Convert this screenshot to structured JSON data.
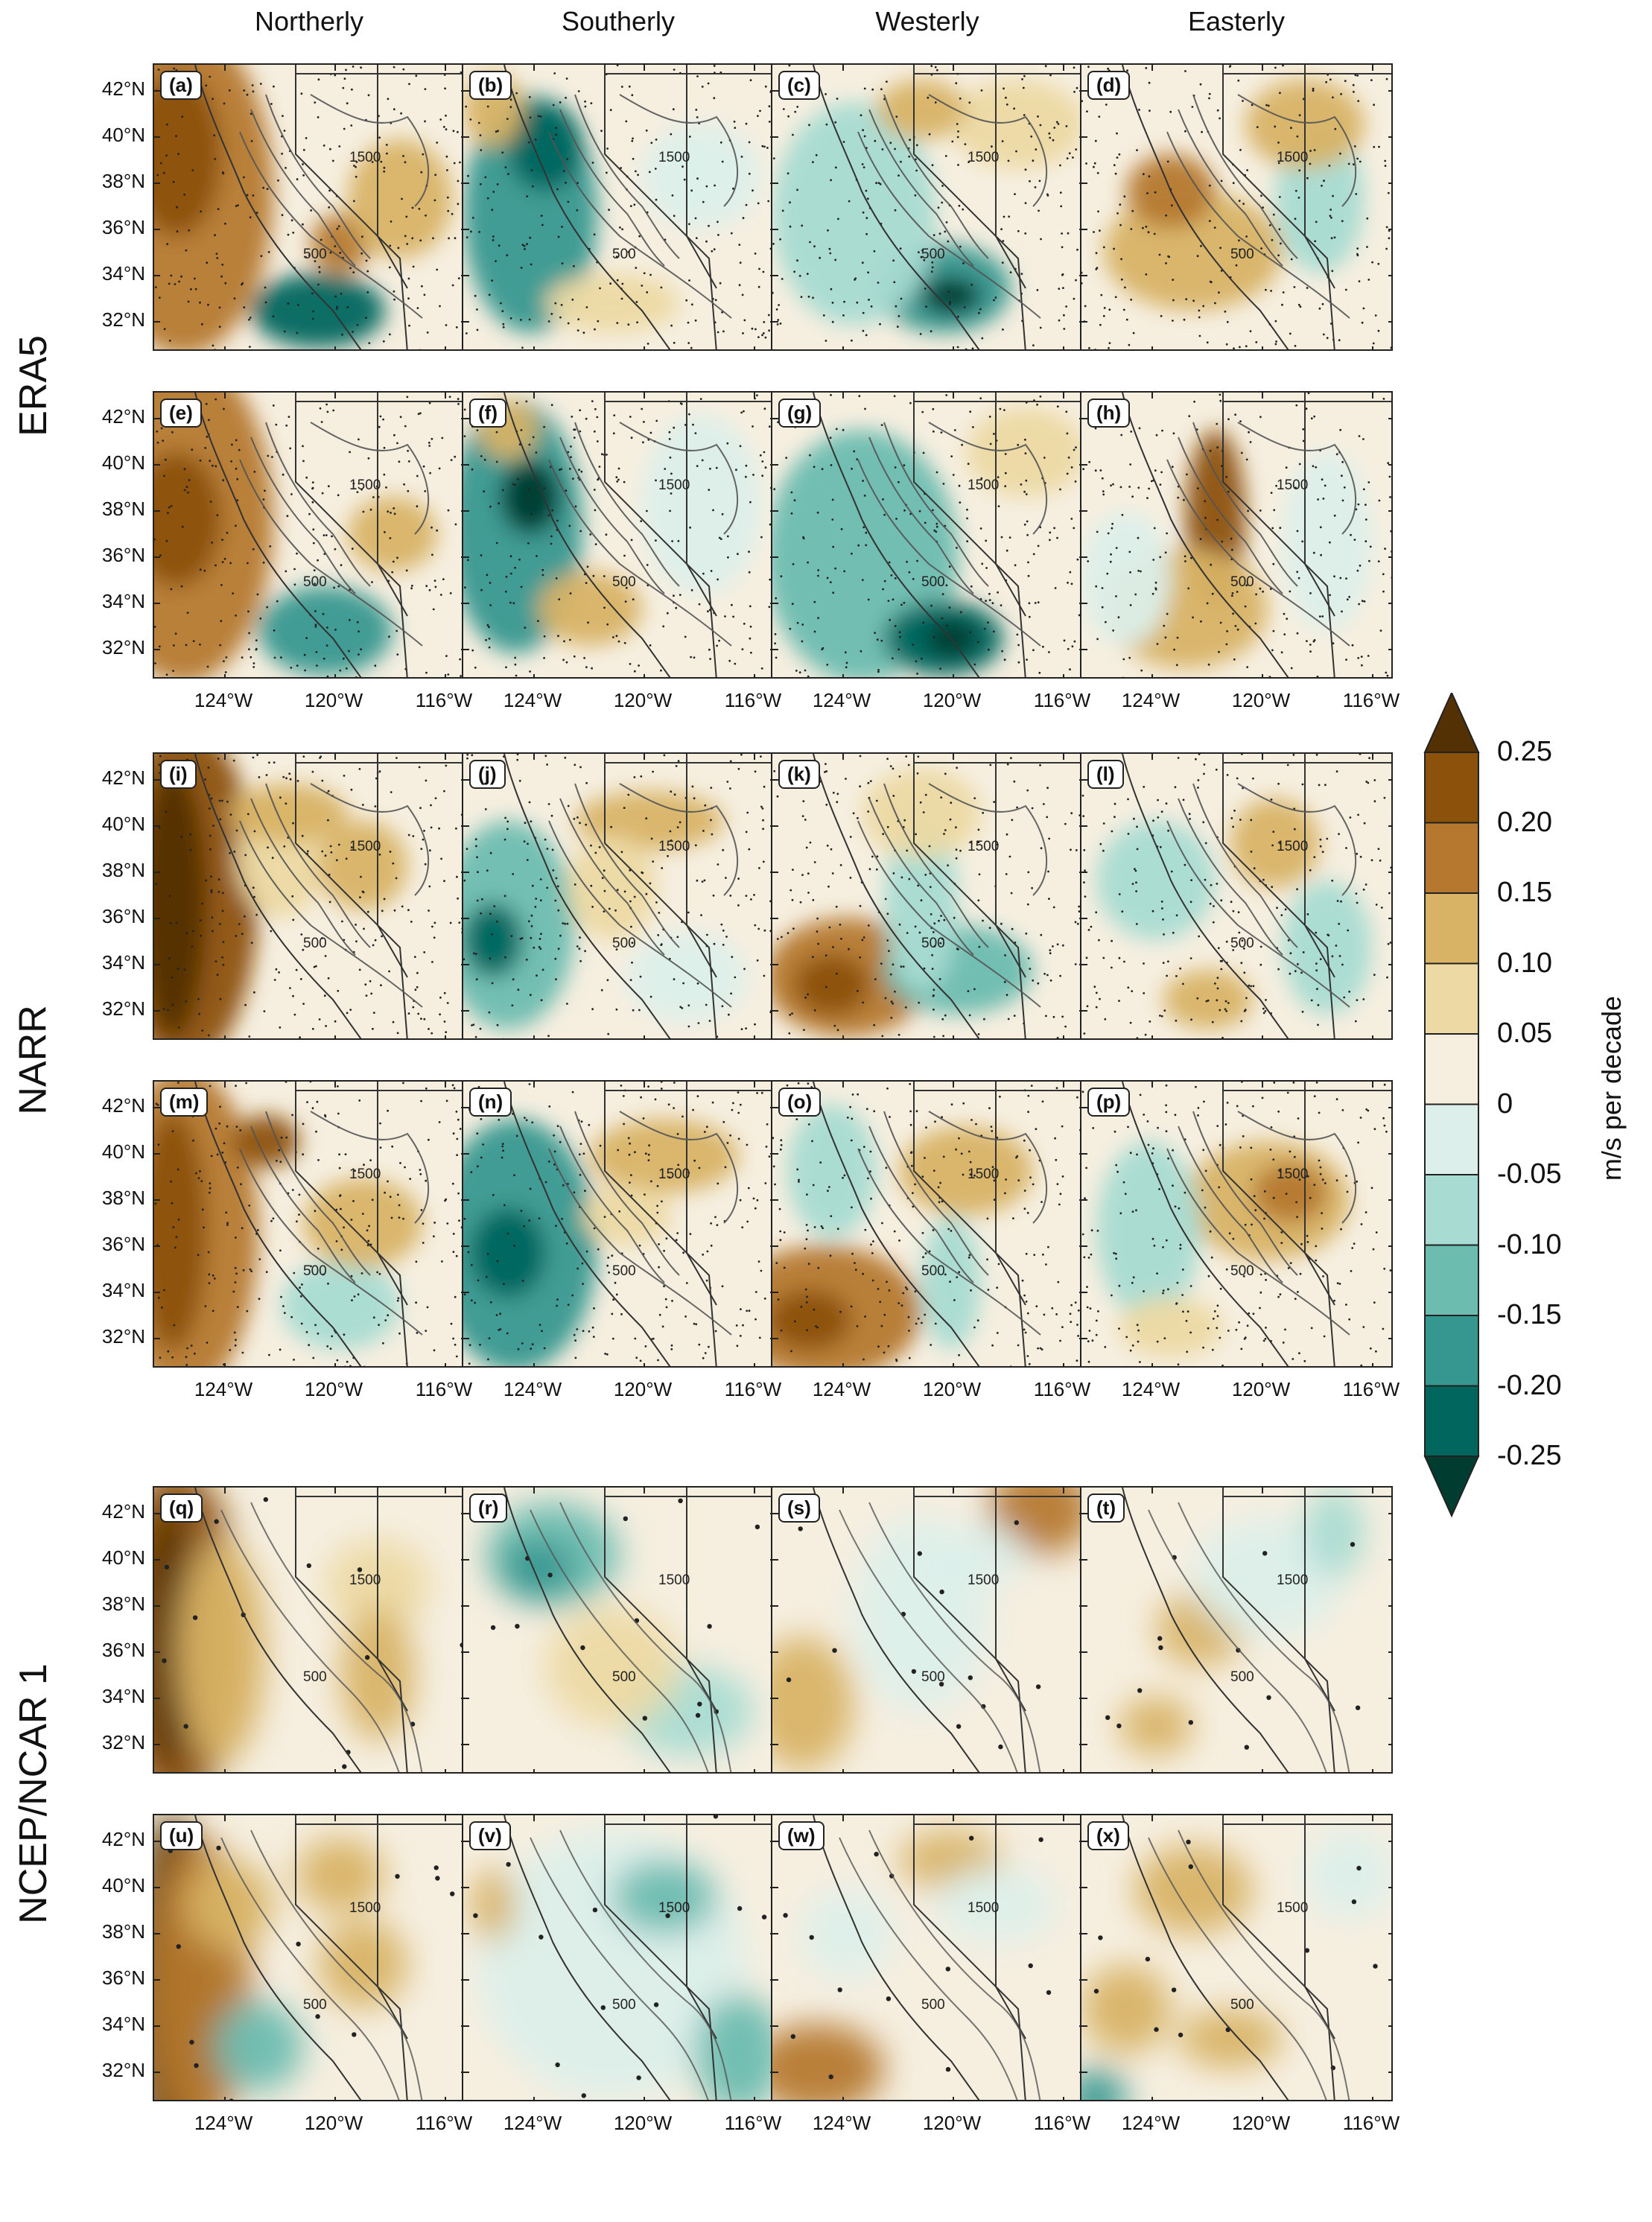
{
  "columns": [
    "Northerly",
    "Southerly",
    "Westerly",
    "Easterly"
  ],
  "rows": [
    {
      "label": "ERA5",
      "panels": [
        "(a)",
        "(b)",
        "(c)",
        "(d)",
        "(e)",
        "(f)",
        "(g)",
        "(h)"
      ]
    },
    {
      "label": "NARR",
      "panels": [
        "(i)",
        "(j)",
        "(k)",
        "(l)",
        "(m)",
        "(n)",
        "(o)",
        "(p)"
      ]
    },
    {
      "label": "NCEP/NCAR 1",
      "panels": [
        "(q)",
        "(r)",
        "(s)",
        "(t)",
        "(u)",
        "(v)",
        "(w)",
        "(x)"
      ]
    }
  ],
  "lat_ticks": [
    "42°N",
    "40°N",
    "38°N",
    "36°N",
    "34°N",
    "32°N"
  ],
  "lon_ticks": [
    "124°W",
    "120°W",
    "116°W"
  ],
  "contour_labels": [
    "500",
    "1500"
  ],
  "colorbar": {
    "title": "m/s per decade",
    "labels": [
      "0.25",
      "0.20",
      "0.15",
      "0.10",
      "0.05",
      "0",
      "-0.05",
      "-0.10",
      "-0.15",
      "-0.20",
      "-0.25"
    ],
    "colors": [
      "#543005",
      "#8c510a",
      "#b5782e",
      "#d8b365",
      "#ecd9a3",
      "#f6efe0",
      "#dcefea",
      "#a8dbd2",
      "#6cbcb0",
      "#35978f",
      "#01665e",
      "#003c30"
    ]
  }
}
